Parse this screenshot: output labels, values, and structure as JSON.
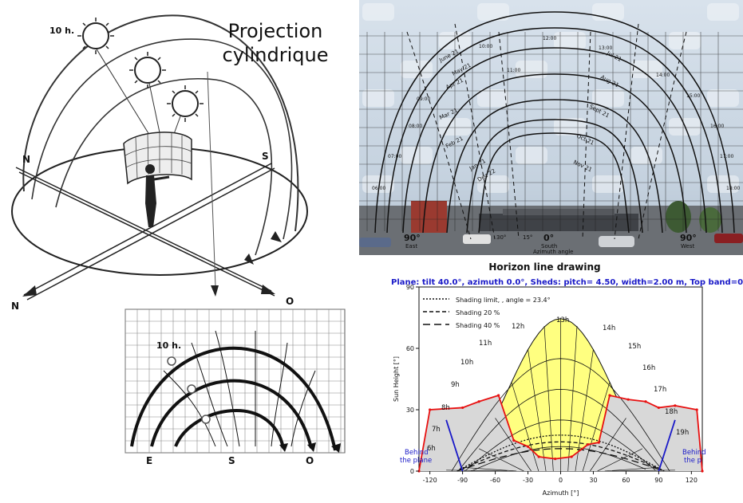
{
  "left_panel": {
    "title_line1": "Projection",
    "title_line2": "cylindrique",
    "sphere_time_label": "10 h.",
    "dir_labels": {
      "n_left": "N",
      "s_right": "S",
      "n_bottom": "N",
      "o_bottom": "O"
    },
    "grid_time_label": "10 h.",
    "grid_axis_labels": [
      "E",
      "S",
      "O"
    ]
  },
  "photo_panel": {
    "hour_labels": [
      "10:00",
      "12:00",
      "13:00",
      "14:00",
      "15:00",
      "11:00",
      "09:00",
      "08:00",
      "07:00",
      "06:00",
      "16:00",
      "17:00",
      "18:00"
    ],
    "date_labels": [
      "June 21",
      "May 21",
      "Apr 21",
      "Mar 21",
      "Feb 21",
      "Jan 21",
      "Dec 22",
      "Jul 21",
      "Aug 21",
      "Sept 21",
      "Oct 21",
      "Nov 21"
    ],
    "azimuth_labels": {
      "left": "90°",
      "center": "0°",
      "right": "90°",
      "left_name": "East",
      "center_name": "South",
      "right_name": "West",
      "axis_title": "Azimuth angle"
    },
    "small_tick_labels": [
      "15°",
      "30°"
    ]
  },
  "chart_panel": {
    "title": "Horizon line drawing",
    "subtitle": "Plane: tilt  40.0°, azimuth   0.0°, Sheds: pitch= 4.50, width=2.00 m, Top band=0.00 m",
    "legend": [
      "Shading limit, , angle = 23.4°",
      "Shading 20 %",
      "Shading 40 %"
    ],
    "hour_labels": [
      "12h",
      "13h",
      "14h",
      "15h",
      "16h",
      "17h",
      "18h",
      "19h",
      "11h",
      "10h",
      "9h",
      "8h",
      "7h",
      "6h"
    ],
    "behind_label_left": [
      "Behind",
      "the plane"
    ],
    "behind_label_right": [
      "Behind",
      "the p"
    ],
    "colors": {
      "sun_area": "#ffff80",
      "horizon": "#e81010",
      "behind": "#1a1ac8",
      "shade": "#d8d8d8"
    }
  },
  "chart_data": {
    "type": "line",
    "xlabel": "Azimuth [°]",
    "ylabel": "Sun Height [°]",
    "xlim": [
      -130,
      130
    ],
    "ylim": [
      0,
      90
    ],
    "xticks": [
      -120,
      -90,
      -60,
      -30,
      0,
      30,
      60,
      90,
      120
    ],
    "yticks": [
      0,
      30,
      60,
      90
    ],
    "series": [
      {
        "values": [
          [
            -130,
            0
          ],
          [
            -120,
            30
          ],
          [
            -90,
            31
          ],
          [
            -75,
            34
          ],
          [
            -57,
            37
          ],
          [
            -43,
            15
          ],
          [
            -30,
            12
          ],
          [
            -20,
            7
          ],
          [
            -5,
            6
          ],
          [
            10,
            7
          ],
          [
            25,
            13
          ],
          [
            35,
            14
          ],
          [
            45,
            37
          ],
          [
            62,
            35
          ],
          [
            78,
            34
          ],
          [
            90,
            31
          ],
          [
            105,
            32
          ],
          [
            125,
            30
          ],
          [
            130,
            0
          ]
        ]
      }
    ]
  }
}
